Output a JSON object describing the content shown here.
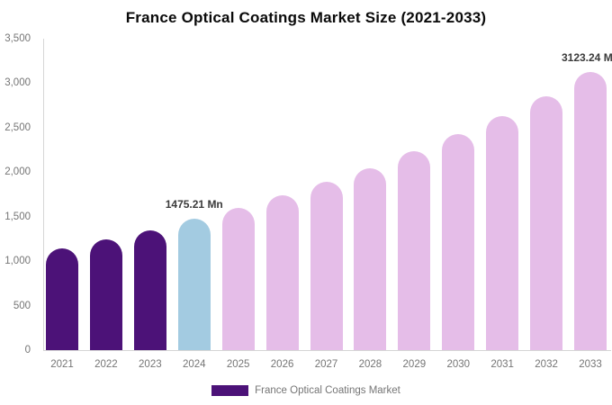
{
  "chart_data": {
    "type": "bar",
    "title": "France Optical Coatings Market Size (2021-2033)",
    "categories": [
      "2021",
      "2022",
      "2023",
      "2024",
      "2025",
      "2026",
      "2027",
      "2028",
      "2029",
      "2030",
      "2031",
      "2032",
      "2033"
    ],
    "values": [
      1145,
      1245,
      1350,
      1475.21,
      1595,
      1740,
      1890,
      2045,
      2240,
      2425,
      2630,
      2855,
      3123.24
    ],
    "unit": "Mn",
    "xlabel": "",
    "ylabel": "",
    "ylim": [
      0,
      3500
    ],
    "ytick_step": 500,
    "ytick_labels": [
      "0",
      "500",
      "1,000",
      "1,500",
      "2,000",
      "2,500",
      "3,000",
      "3,500"
    ],
    "grid": false,
    "bar_roles": [
      "historical",
      "historical",
      "historical",
      "base",
      "forecast",
      "forecast",
      "forecast",
      "forecast",
      "forecast",
      "forecast",
      "forecast",
      "forecast",
      "forecast"
    ],
    "colors": {
      "historical": "#4C1278",
      "base": "#A3CBE1",
      "forecast": "#E5BDE8",
      "axis_line": "#d5d5d5",
      "tick_text": "#757575",
      "title_text": "#0a0a0a",
      "data_label_text": "#3a3a3a"
    },
    "point_labels": [
      {
        "index": 3,
        "text": "1475.21 Mn"
      },
      {
        "index": 12,
        "text": "3123.24 Mn"
      }
    ],
    "legend": {
      "label": "France Optical Coatings Market",
      "swatch_color": "#4C1278",
      "position": "bottom"
    }
  }
}
